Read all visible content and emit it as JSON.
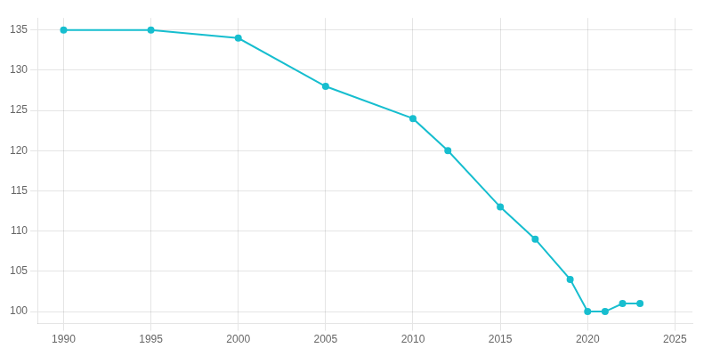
{
  "chart_data": {
    "type": "line",
    "x": [
      1990,
      1995,
      2000,
      2005,
      2010,
      2012,
      2015,
      2017,
      2019,
      2020,
      2021,
      2022,
      2023
    ],
    "values": [
      135,
      135,
      134,
      128,
      124,
      120,
      113,
      109,
      104,
      100,
      100,
      101,
      101
    ],
    "color": "#17becf",
    "marker": "circle",
    "xlim": [
      1988.5,
      2026
    ],
    "xticks": [
      1990,
      1995,
      2000,
      2005,
      2010,
      2015,
      2020,
      2025
    ],
    "ylim": [
      98.5,
      136.5
    ],
    "yticks": [
      100,
      105,
      110,
      115,
      120,
      125,
      130,
      135
    ],
    "grid": true
  }
}
